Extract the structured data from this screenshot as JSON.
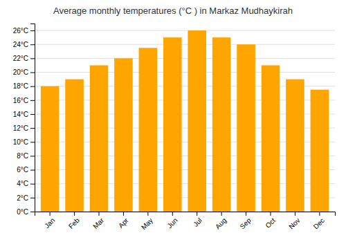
{
  "chart_data": {
    "type": "bar",
    "title": "Average monthly temperatures (°C ) in Markaz Mudhaykirah",
    "categories": [
      "Jan",
      "Feb",
      "Mar",
      "Apr",
      "May",
      "Jun",
      "Jul",
      "Aug",
      "Sep",
      "Oct",
      "Nov",
      "Dec"
    ],
    "values": [
      18.0,
      19.0,
      21.0,
      22.0,
      23.5,
      25.0,
      26.0,
      25.0,
      24.0,
      21.0,
      19.0,
      17.5
    ],
    "color": "#FFA500",
    "ylim": [
      0,
      27
    ],
    "yticks": [
      {
        "value": 0,
        "label": "0°C"
      },
      {
        "value": 2,
        "label": "2°C"
      },
      {
        "value": 4,
        "label": "4°C"
      },
      {
        "value": 6,
        "label": "6°C"
      },
      {
        "value": 8,
        "label": "8°C"
      },
      {
        "value": 10,
        "label": "10°C"
      },
      {
        "value": 12,
        "label": "12°C"
      },
      {
        "value": 14,
        "label": "14°C"
      },
      {
        "value": 16,
        "label": "16°C"
      },
      {
        "value": 18,
        "label": "18°C"
      },
      {
        "value": 20,
        "label": "20°C"
      },
      {
        "value": 22,
        "label": "22°C"
      },
      {
        "value": 24,
        "label": "24°C"
      },
      {
        "value": 26,
        "label": "26°C"
      }
    ],
    "grid": true
  }
}
